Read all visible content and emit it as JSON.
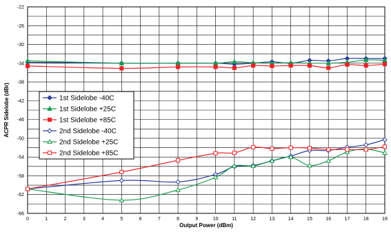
{
  "chart_data": {
    "type": "line",
    "xlabel": "Output Power (dBm)",
    "ylabel": "ACPR Sidelobe (dBr)",
    "xlim": [
      0,
      19
    ],
    "ylim": [
      -66,
      -22
    ],
    "xticks": [
      0,
      1,
      2,
      3,
      4,
      5,
      6,
      7,
      8,
      9,
      10,
      11,
      12,
      13,
      14,
      15,
      16,
      17,
      18,
      19
    ],
    "yticks": [
      -22,
      -26,
      -30,
      -34,
      -38,
      -42,
      -46,
      -50,
      -54,
      -58,
      -62,
      -66
    ],
    "grid": true,
    "legend_position": "left-middle",
    "series": [
      {
        "name": "1st Sidelobe -40C",
        "color": "#2a3c9a",
        "marker": "diamond",
        "filled": true,
        "x": [
          0,
          5,
          8,
          10,
          11,
          12,
          13,
          14,
          15,
          16,
          17,
          18,
          19
        ],
        "y": [
          -33.8,
          -34.0,
          -34.0,
          -34.0,
          -34.2,
          -34.0,
          -33.7,
          -34.0,
          -33.4,
          -33.5,
          -33.0,
          -33.0,
          -33.0
        ]
      },
      {
        "name": "1st Sidelobe +25C",
        "color": "#1a9a50",
        "marker": "triangle",
        "filled": true,
        "x": [
          0,
          5,
          8,
          10,
          11,
          12,
          13,
          14,
          15,
          16,
          17,
          18,
          19
        ],
        "y": [
          -33.5,
          -34.0,
          -34.0,
          -34.0,
          -33.7,
          -33.9,
          -34.0,
          -33.9,
          -34.0,
          -34.0,
          -33.8,
          -33.3,
          -33.4
        ]
      },
      {
        "name": "1st Sidelobe +85C",
        "color": "#e8252a",
        "marker": "square",
        "filled": true,
        "x": [
          0,
          5,
          8,
          10,
          11,
          12,
          13,
          14,
          15,
          16,
          17,
          18,
          19
        ],
        "y": [
          -34.6,
          -35.1,
          -34.8,
          -34.8,
          -35.0,
          -34.5,
          -34.6,
          -34.5,
          -34.5,
          -35.0,
          -34.3,
          -34.5,
          -34.2
        ]
      },
      {
        "name": "2nd Sidelobe -40C",
        "color": "#2a3c9a",
        "marker": "diamond",
        "filled": false,
        "x": [
          0,
          5,
          8,
          10,
          11,
          12,
          13,
          14,
          15,
          16,
          17,
          18,
          19
        ],
        "y": [
          -60.8,
          -59.0,
          -59.3,
          -57.7,
          -56.0,
          -55.8,
          -54.8,
          -53.8,
          -52.6,
          -52.6,
          -51.9,
          -51.4,
          -50.3
        ]
      },
      {
        "name": "2nd Sidelobe +25C",
        "color": "#1a9a50",
        "marker": "triangle",
        "filled": false,
        "x": [
          0,
          5,
          8,
          10,
          11,
          12,
          13,
          14,
          15,
          16,
          17,
          18,
          19
        ],
        "y": [
          -60.8,
          -63.2,
          -61.0,
          -58.3,
          -55.9,
          -55.9,
          -54.8,
          -54.0,
          -55.8,
          -54.8,
          -52.9,
          -52.3,
          -53.1
        ]
      },
      {
        "name": "2nd Sidelobe +85C",
        "color": "#e8252a",
        "marker": "square",
        "filled": false,
        "x": [
          0,
          5,
          8,
          10,
          11,
          12,
          13,
          14,
          15,
          16,
          17,
          18,
          19
        ],
        "y": [
          -60.8,
          -57.2,
          -54.7,
          -53.2,
          -53.1,
          -51.9,
          -52.2,
          -52.0,
          -52.1,
          -52.4,
          -52.4,
          -52.4,
          -51.8
        ]
      }
    ]
  }
}
